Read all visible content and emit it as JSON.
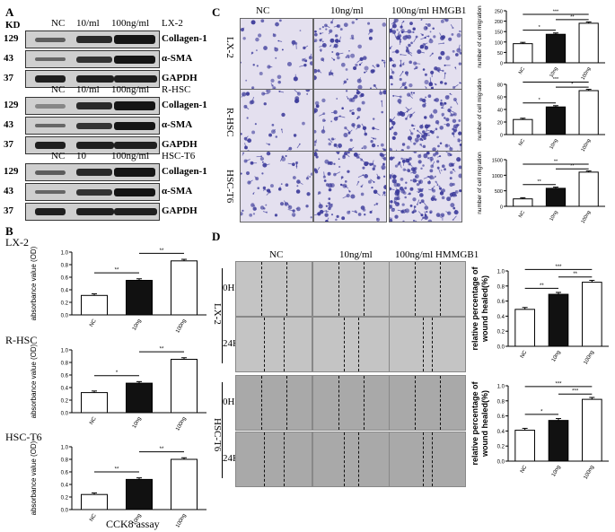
{
  "panelA": {
    "letter": "A",
    "kd_label": "KD",
    "blots": [
      {
        "cols": [
          "NC",
          "10/ml",
          "100ng/ml"
        ],
        "cell": "LX-2",
        "rows": [
          {
            "kd": "129",
            "protein": "Collagen-1"
          },
          {
            "kd": "43",
            "protein": "α-SMA"
          },
          {
            "kd": "37",
            "protein": "GAPDH"
          }
        ]
      },
      {
        "cols": [
          "NC",
          "10/ml",
          "100ng/ml"
        ],
        "cell": "R-HSC",
        "rows": [
          {
            "kd": "129",
            "protein": "Collagen-1"
          },
          {
            "kd": "43",
            "protein": "α-SMA"
          },
          {
            "kd": "37",
            "protein": "GAPDH"
          }
        ]
      },
      {
        "cols": [
          "NC",
          "10",
          "100ng/ml"
        ],
        "cell": "HSC-T6",
        "rows": [
          {
            "kd": "129",
            "protein": "Collagen-1"
          },
          {
            "kd": "43",
            "protein": "α-SMA"
          },
          {
            "kd": "37",
            "protein": "GAPDH"
          }
        ]
      }
    ]
  },
  "panelB": {
    "letter": "B",
    "footer": "CCK8 assay",
    "charts": [
      {
        "cell": "LX-2",
        "ylabel": "absorbance value (OD)",
        "ticks": [
          "0.0",
          "0.2",
          "0.4",
          "0.6",
          "0.8",
          "1.0"
        ],
        "sig": [
          "**",
          "**"
        ]
      },
      {
        "cell": "R-HSC",
        "ylabel": "absorbance value (OD)",
        "ticks": [
          "0.0",
          "0.2",
          "0.4",
          "0.6",
          "0.8",
          "1.0"
        ],
        "sig": [
          "*",
          "**"
        ]
      },
      {
        "cell": "HSC-T6",
        "ylabel": "absorbance value (OD)",
        "ticks": [
          "0.0",
          "0.2",
          "0.4",
          "0.6",
          "0.8",
          "1.0"
        ],
        "sig": [
          "**",
          "**"
        ]
      }
    ]
  },
  "panelC": {
    "letter": "C",
    "cols": [
      "NC",
      "10ng/ml",
      "100ng/ml HMGB1"
    ],
    "rows": [
      "LX-2",
      "R-HSC",
      "HSC-T6"
    ],
    "charts": [
      {
        "ylabel": "number of cell migration",
        "ticks": [
          "0",
          "50",
          "100",
          "150",
          "200",
          "250"
        ],
        "sig": [
          "*",
          "**",
          "***"
        ]
      },
      {
        "ylabel": "number of cell migration",
        "ticks": [
          "0",
          "20",
          "40",
          "60",
          "80"
        ],
        "sig": [
          "*",
          "*",
          "***"
        ]
      },
      {
        "ylabel": "number of cell migration",
        "ticks": [
          "0",
          "500",
          "1000",
          "1500"
        ],
        "sig": [
          "**",
          "**",
          "**"
        ]
      }
    ]
  },
  "panelD": {
    "letter": "D",
    "cols": [
      "NC",
      "10ng/ml",
      "100ng/ml HMMGB1"
    ],
    "groups": [
      {
        "cell": "LX-2",
        "times": [
          "0H",
          "24H"
        ]
      },
      {
        "cell": "HSC-T6",
        "times": [
          "0H",
          "24H"
        ]
      }
    ],
    "charts": [
      {
        "ylabel1": "relative percentage of",
        "ylabel2": "wound healed(%)",
        "ticks": [
          "0.0",
          "0.2",
          "0.4",
          "0.6",
          "0.8",
          "1.0"
        ],
        "sig": [
          "**",
          "**",
          "***"
        ]
      },
      {
        "ylabel1": "relative percentage of",
        "ylabel2": "wound healed(%)",
        "ticks": [
          "0.0",
          "0.2",
          "0.4",
          "0.6",
          "0.8",
          "1.0"
        ],
        "sig": [
          "*",
          "***",
          "***"
        ]
      }
    ]
  },
  "categories": [
    "NC",
    "10ng",
    "100ng"
  ],
  "colors": {
    "bar_nc": "#ffffff",
    "bar_10": "#111111",
    "bar_100": "#ffffff",
    "micro_bg": "#e4e0ef",
    "cell_stain": "#3b3a9a"
  },
  "chart_data": [
    {
      "type": "bar",
      "categories": [
        "NC",
        "10ng",
        "100ng"
      ],
      "values": [
        0.31,
        0.55,
        0.86
      ],
      "ylim": [
        0,
        1.0
      ],
      "ylabel": "absorbance value (OD)"
    },
    {
      "type": "bar",
      "categories": [
        "NC",
        "10ng",
        "100ng"
      ],
      "values": [
        0.32,
        0.47,
        0.85
      ],
      "ylim": [
        0,
        1.0
      ],
      "ylabel": "absorbance value (OD)"
    },
    {
      "type": "bar",
      "categories": [
        "NC",
        "10ng",
        "100ng"
      ],
      "values": [
        0.24,
        0.48,
        0.8
      ],
      "ylim": [
        0,
        1.0
      ],
      "ylabel": "absorbance value (OD)"
    },
    {
      "type": "bar",
      "categories": [
        "NC",
        "10ng",
        "100ng"
      ],
      "values": [
        92,
        137,
        190
      ],
      "ylim": [
        0,
        250
      ],
      "ylabel": "number of cell migration"
    },
    {
      "type": "bar",
      "categories": [
        "NC",
        "10ng",
        "100ng"
      ],
      "values": [
        24,
        44,
        70
      ],
      "ylim": [
        0,
        80
      ],
      "ylabel": "number of cell migration"
    },
    {
      "type": "bar",
      "categories": [
        "NC",
        "10ng",
        "100ng"
      ],
      "values": [
        240,
        580,
        1100
      ],
      "ylim": [
        0,
        1500
      ],
      "ylabel": "number of cell migration"
    },
    {
      "type": "bar",
      "categories": [
        "NC",
        "10ng",
        "100ng"
      ],
      "values": [
        0.49,
        0.69,
        0.85
      ],
      "ylim": [
        0,
        1.0
      ],
      "ylabel": "relative percentage of wound healed(%)"
    },
    {
      "type": "bar",
      "categories": [
        "NC",
        "10ng",
        "100ng"
      ],
      "values": [
        0.41,
        0.54,
        0.82
      ],
      "ylim": [
        0,
        1.0
      ],
      "ylabel": "relative percentage of wound healed(%)"
    }
  ]
}
